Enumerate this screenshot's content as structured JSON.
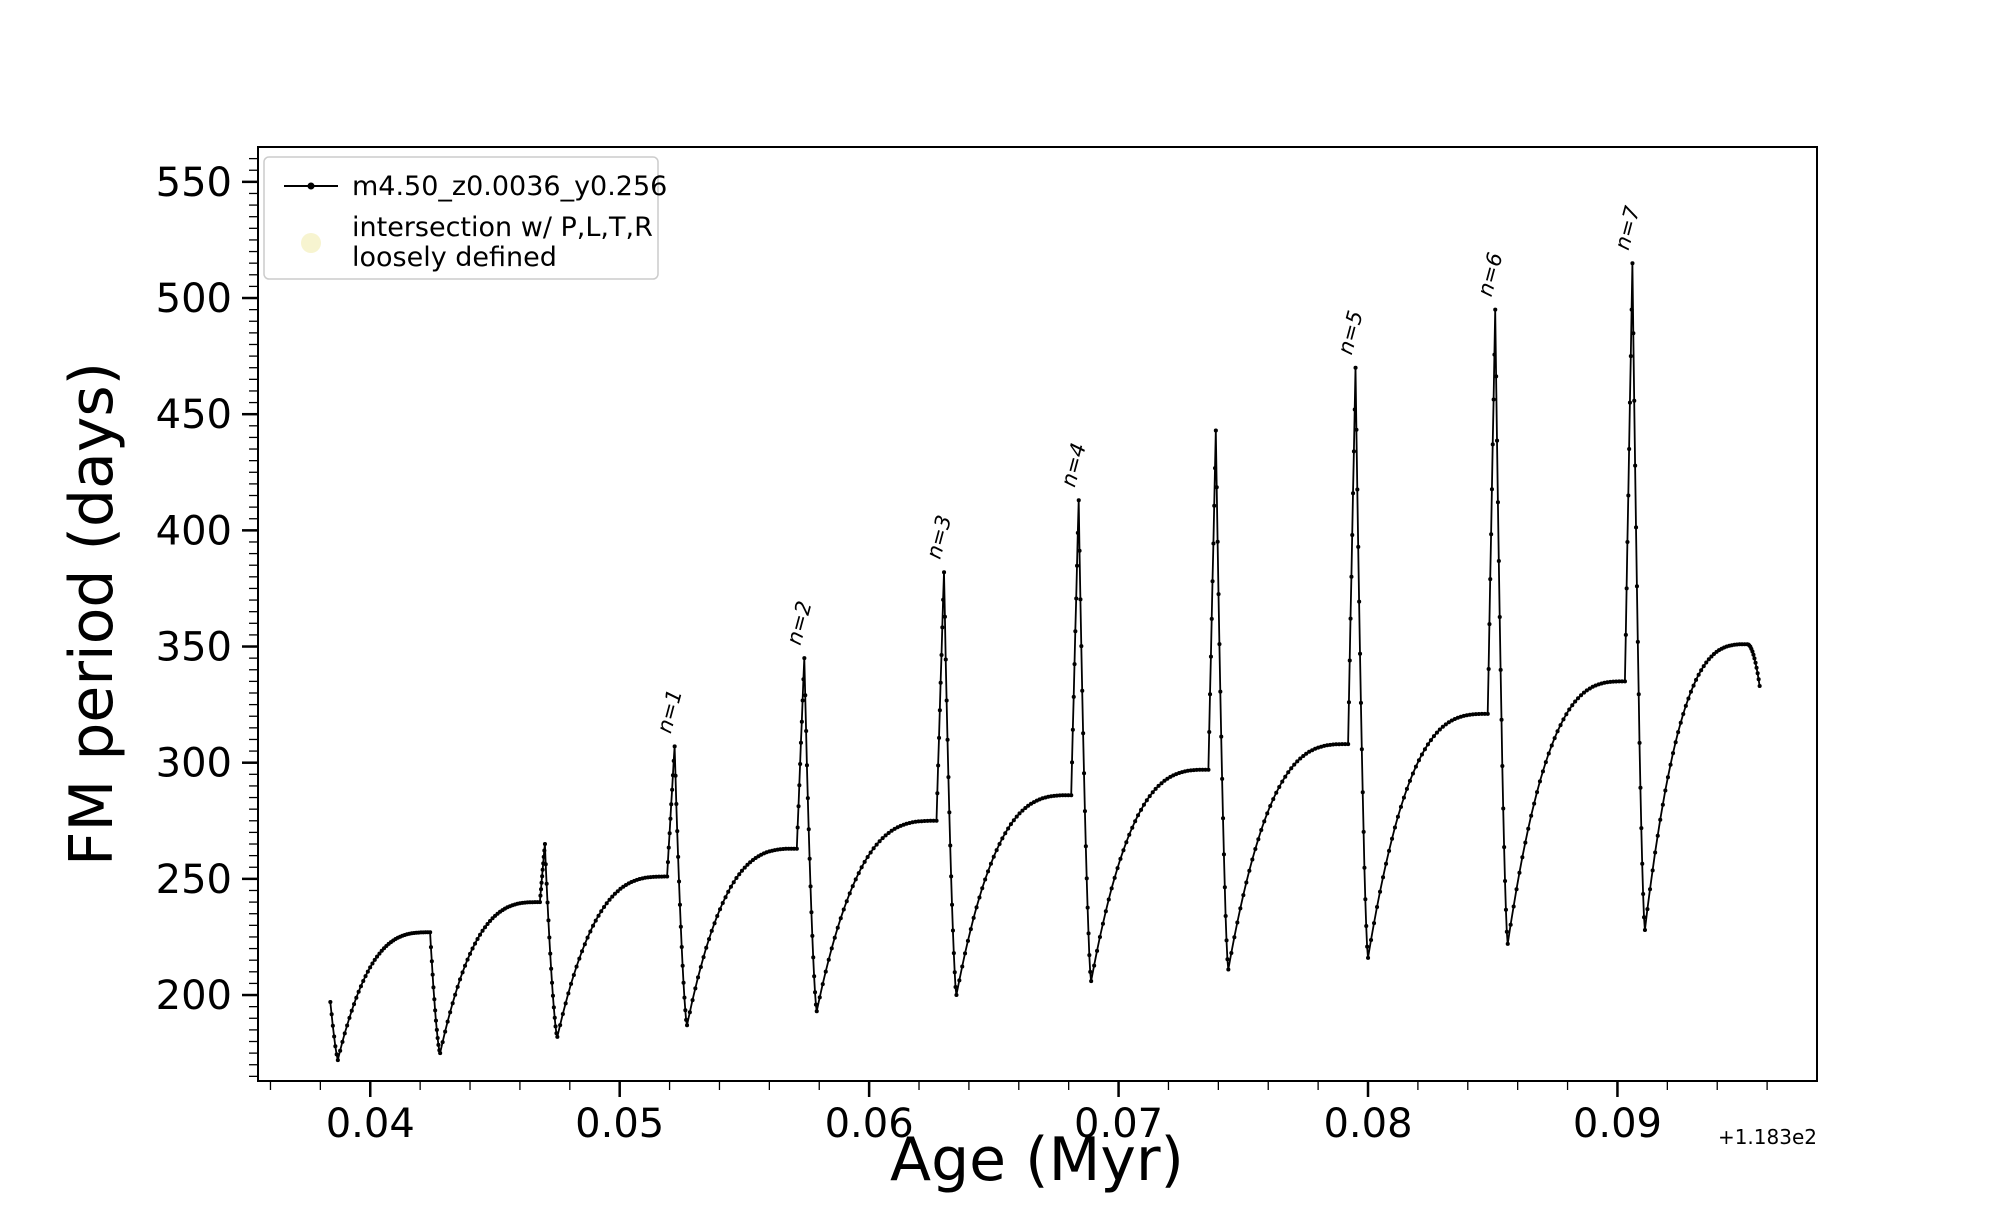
{
  "axes": {
    "xlabel": "Age (Myr)",
    "ylabel": "FM period (days)",
    "offset_text": "+1.183e2"
  },
  "legend": {
    "entries": [
      {
        "label": "m4.50_z0.0036_y0.256",
        "type": "line-dot",
        "color": "#000000"
      },
      {
        "label_line1": "intersection w/ P,L,T,R",
        "label_line2": "loosely defined",
        "type": "marker",
        "color": "#f1ecb0"
      }
    ]
  },
  "chart_data": {
    "type": "line",
    "title": "",
    "xlabel": "Age (Myr)",
    "ylabel": "FM period (days)",
    "x_offset_text": "+1.183e2",
    "series_name": "m4.50_z0.0036_y0.256",
    "line_color": "#000000",
    "grid": false,
    "legend_position": "upper left",
    "xlim": [
      0.0355,
      0.098
    ],
    "ylim": [
      163,
      565
    ],
    "x_ticks": [
      0.04,
      0.05,
      0.06,
      0.07,
      0.08,
      0.09
    ],
    "y_ticks": [
      200,
      250,
      300,
      350,
      400,
      450,
      500,
      550
    ],
    "x_minor_step": 0.002,
    "y_minor_step": 5,
    "lead_in": {
      "x": 0.0384,
      "y": 197
    },
    "cycles": [
      {
        "x_low": 0.0387,
        "y_low": 172,
        "x_peak": 0.0424,
        "y_peak": 227,
        "x_drop": 0.0428,
        "y_drop": 175
      },
      {
        "x_low": 0.0428,
        "y_low": 175,
        "x_peak": 0.0468,
        "y_peak": 240,
        "spike": {
          "x": 0.047,
          "y": 265,
          "label": ""
        },
        "x_drop": 0.0475,
        "y_drop": 182
      },
      {
        "x_low": 0.0475,
        "y_low": 182,
        "x_peak": 0.0519,
        "y_peak": 251,
        "spike": {
          "x": 0.0522,
          "y": 307,
          "label": "n=1"
        },
        "x_drop": 0.0527,
        "y_drop": 187
      },
      {
        "x_low": 0.0527,
        "y_low": 187,
        "x_peak": 0.0571,
        "y_peak": 263,
        "spike": {
          "x": 0.0574,
          "y": 345,
          "label": "n=2"
        },
        "x_drop": 0.0579,
        "y_drop": 193
      },
      {
        "x_low": 0.0579,
        "y_low": 193,
        "x_peak": 0.0627,
        "y_peak": 275,
        "spike": {
          "x": 0.063,
          "y": 382,
          "label": "n=3"
        },
        "x_drop": 0.0635,
        "y_drop": 200
      },
      {
        "x_low": 0.0635,
        "y_low": 200,
        "x_peak": 0.0681,
        "y_peak": 286,
        "spike": {
          "x": 0.0684,
          "y": 413,
          "label": "n=4"
        },
        "x_drop": 0.0689,
        "y_drop": 206
      },
      {
        "x_low": 0.0689,
        "y_low": 206,
        "x_peak": 0.0736,
        "y_peak": 297,
        "spike": {
          "x": 0.0739,
          "y": 443,
          "label": ""
        },
        "x_drop": 0.0744,
        "y_drop": 211
      },
      {
        "x_low": 0.0744,
        "y_low": 211,
        "x_peak": 0.0792,
        "y_peak": 308,
        "spike": {
          "x": 0.0795,
          "y": 470,
          "label": "n=5"
        },
        "x_drop": 0.08,
        "y_drop": 216
      },
      {
        "x_low": 0.08,
        "y_low": 216,
        "x_peak": 0.0848,
        "y_peak": 321,
        "spike": {
          "x": 0.0851,
          "y": 495,
          "label": "n=6"
        },
        "x_drop": 0.0856,
        "y_drop": 222
      },
      {
        "x_low": 0.0856,
        "y_low": 222,
        "x_peak": 0.0903,
        "y_peak": 335,
        "spike": {
          "x": 0.0906,
          "y": 515,
          "label": "n=7"
        },
        "x_drop": 0.0911,
        "y_drop": 228
      },
      {
        "x_low": 0.0911,
        "y_low": 228,
        "x_peak": 0.0952,
        "y_peak": 351,
        "end": {
          "x": 0.0957,
          "y": 333
        }
      }
    ]
  }
}
